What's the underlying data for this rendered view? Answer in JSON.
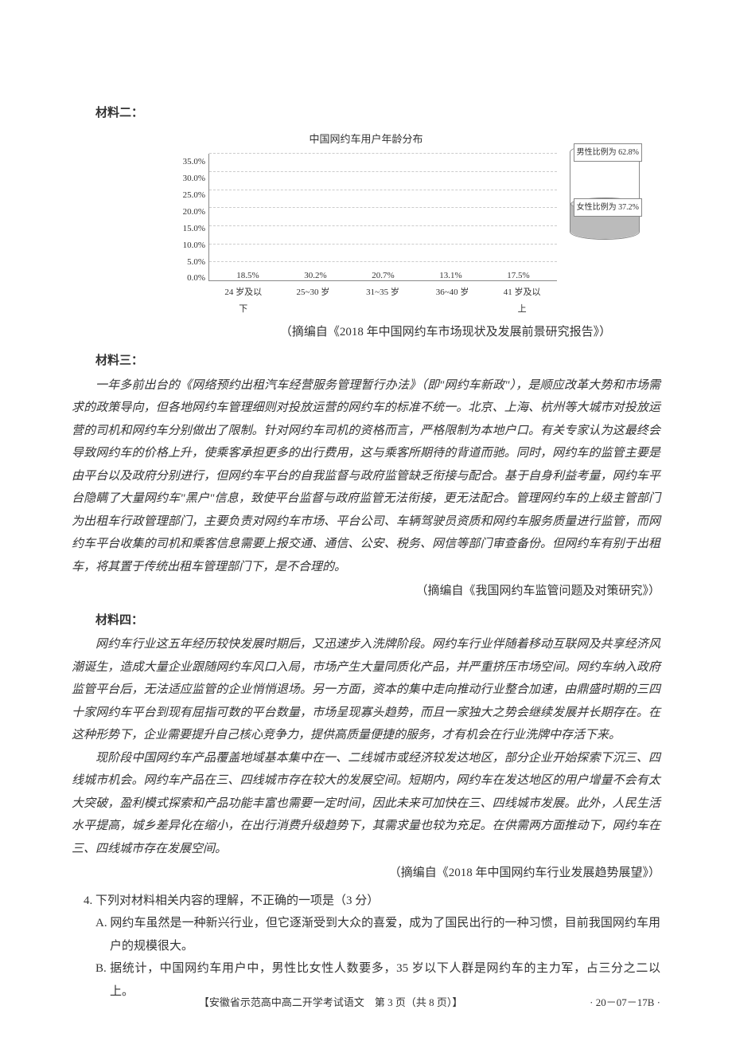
{
  "material2": {
    "heading": "材料二：",
    "chart": {
      "title": "中国网约车用户年龄分布",
      "type": "bar",
      "y_ticks": [
        "35.0%",
        "30.0%",
        "25.0%",
        "20.0%",
        "15.0%",
        "10.0%",
        "5.0%",
        "0.0%"
      ],
      "ylim_max": 35.0,
      "categories": [
        "24 岁及以下",
        "25~30 岁",
        "31~35 岁",
        "36~40 岁",
        "41 岁及以上"
      ],
      "values": [
        18.5,
        30.2,
        20.7,
        13.1,
        17.5
      ],
      "value_labels": [
        "18.5%",
        "30.2%",
        "20.7%",
        "13.1%",
        "17.5%"
      ],
      "bar_color": "#6b6b6b",
      "grid_color": "#cccccc",
      "male_label": "男性比例为 62.8%",
      "female_label": "女性比例为 37.2%"
    },
    "source": "（摘编自《2018 年中国网约车市场现状及发展前景研究报告》）"
  },
  "material3": {
    "heading": "材料三：",
    "para1": "一年多前出台的《网络预约出租汽车经营服务管理暂行办法》（即\"网约车新政\"），是顺应改革大势和市场需求的政策导向，但各地网约车管理细则对投放运营的网约车的标准不统一。北京、上海、杭州等大城市对投放运营的司机和网约车分别做出了限制。针对网约车司机的资格而言，严格限制为本地户口。有关专家认为这最终会导致网约车的价格上升，使乘客承担更多的出行费用，这与乘客所期待的背道而驰。同时，网约车的监管主要是由平台以及政府分别进行，但网约车平台的自我监督与政府监管缺乏衔接与配合。基于自身利益考量，网约车平台隐瞒了大量网约车\"黑户\"信息，致使平台监督与政府监管无法衔接，更无法配合。管理网约车的上级主管部门为出租车行政管理部门，主要负责对网约车市场、平台公司、车辆驾驶员资质和网约车服务质量进行监管，而网约车平台收集的司机和乘客信息需要上报交通、通信、公安、税务、网信等部门审查备份。但网约车有别于出租车，将其置于传统出租车管理部门下，是不合理的。",
    "source": "（摘编自《我国网约车监管问题及对策研究》）"
  },
  "material4": {
    "heading": "材料四：",
    "para1": "网约车行业这五年经历较快发展时期后，又迅速步入洗牌阶段。网约车行业伴随着移动互联网及共享经济风潮诞生，造成大量企业跟随网约车风口入局，市场产生大量同质化产品，并严重挤压市场空间。网约车纳入政府监管平台后，无法适应监管的企业悄悄退场。另一方面，资本的集中走向推动行业整合加速，由鼎盛时期的三四十家网约车平台到现有屈指可数的平台数量，市场呈现寡头趋势，而且一家独大之势会继续发展并长期存在。在这种形势下，企业需要提升自己核心竞争力，提供高质量便捷的服务，才有机会在行业洗牌中存活下来。",
    "para2": "现阶段中国网约车产品覆盖地域基本集中在一、二线城市或经济较发达地区，部分企业开始探索下沉三、四线城市机会。网约车产品在三、四线城市存在较大的发展空间。短期内，网约车在发达地区的用户增量不会有太大突破，盈利模式探索和产品功能丰富也需要一定时间，因此未来可加快在三、四线城市发展。此外，人民生活水平提高，城乡差异化在缩小，在出行消费升级趋势下，其需求量也较为充足。在供需两方面推动下，网约车在三、四线城市存在发展空间。",
    "source": "（摘编自《2018 年中国网约车行业发展趋势展望》）"
  },
  "question": {
    "stem": "4. 下列对材料相关内容的理解，不正确的一项是（3 分）",
    "optionA": "A. 网约车虽然是一种新兴行业，但它逐渐受到大众的喜爱，成为了国民出行的一种习惯，目前我国网约车用户的规模很大。",
    "optionB": "B. 据统计，中国网约车用户中，男性比女性人数要多，35 岁以下人群是网约车的主力军，占三分之二以上。"
  },
  "footer": {
    "center": "【安徽省示范高中高二开学考试语文　第 3 页（共 8 页）】",
    "right": "· 20－07－17B ·"
  }
}
